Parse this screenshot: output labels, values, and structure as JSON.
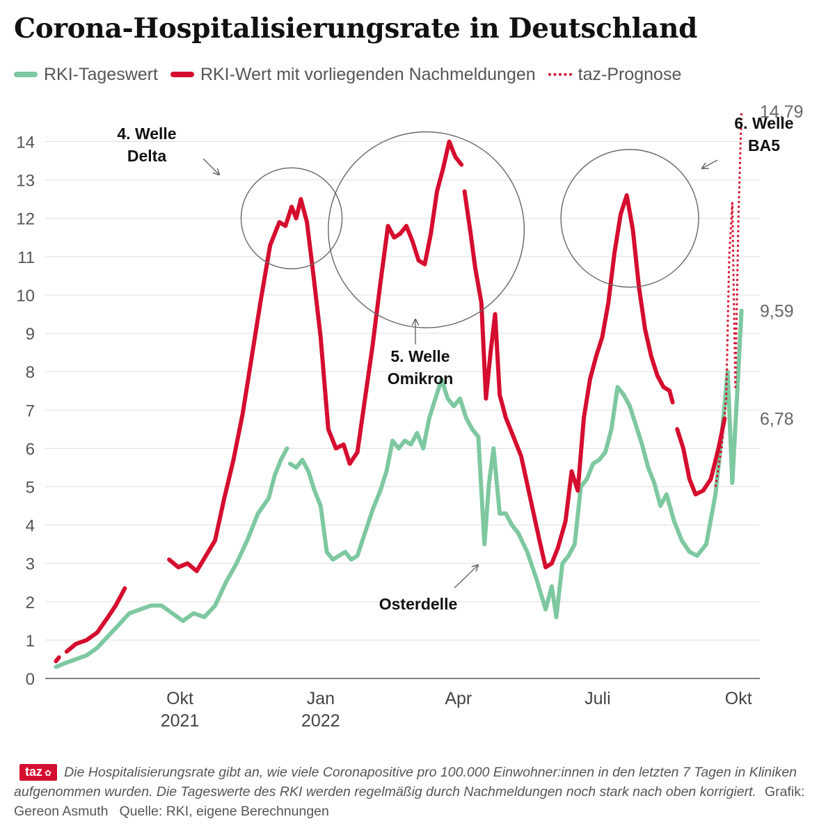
{
  "header": {
    "title": "Corona-Hospitalisierungsrate in Deutschland"
  },
  "legend": {
    "items": [
      {
        "label": "RKI-Tageswert",
        "color": "#7ec8a0",
        "style": "solid"
      },
      {
        "label": "RKI-Wert mit vorliegenden Nachmeldungen",
        "color": "#d50d2e",
        "style": "solid"
      },
      {
        "label": "taz-Prognose",
        "color": "#d50d2e",
        "style": "dotted"
      }
    ]
  },
  "footer": {
    "logo_text": "taz",
    "logo_icon": "paw-icon",
    "description": "Die Hospitalisierungsrate gibt an, wie viele Coronapositive pro 100.000 Einwohner:innen in den letzten 7 Tagen in Kliniken aufgenommen wurden. Die Tageswerte des RKI werden regelmäßig durch Nachmeldungen noch stark nach oben korrigiert.",
    "credit": "Grafik: Gereon Asmuth",
    "source": "Quelle: RKI, eigene Berechnungen"
  },
  "chart_data": {
    "type": "line",
    "x_unit": "date",
    "xlim": [
      "2021-07-05",
      "2022-10-15"
    ],
    "ylim": [
      0,
      14
    ],
    "y_ticks": [
      0,
      1,
      2,
      3,
      4,
      5,
      6,
      7,
      8,
      9,
      10,
      11,
      12,
      13,
      14
    ],
    "y_tick_labels": [
      "0",
      "1",
      "2",
      "3",
      "4",
      "5",
      "6",
      "7",
      "8",
      "9",
      "10",
      "11",
      "12",
      "13",
      "14"
    ],
    "x_ticks": [
      {
        "date": "2021-10-01",
        "label": "Okt",
        "sublabel": "2021"
      },
      {
        "date": "2022-01-01",
        "label": "Jan",
        "sublabel": "2022"
      },
      {
        "date": "2022-04-01",
        "label": "Apr",
        "sublabel": ""
      },
      {
        "date": "2022-07-01",
        "label": "Juli",
        "sublabel": ""
      },
      {
        "date": "2022-10-01",
        "label": "Okt",
        "sublabel": ""
      }
    ],
    "grid": "horizontal",
    "colors": {
      "green": "#7ec8a0",
      "red": "#d50d2e",
      "grid": "#dddddd",
      "axis": "#555555",
      "annotation": "#666666"
    },
    "series": [
      {
        "name": "RKI-Tageswert",
        "color": "#7ec8a0",
        "segments": [
          [
            [
              "2021-07-12",
              0.3
            ],
            [
              "2021-07-18",
              0.4
            ],
            [
              "2021-07-25",
              0.5
            ],
            [
              "2021-08-01",
              0.6
            ],
            [
              "2021-08-08",
              0.8
            ],
            [
              "2021-08-15",
              1.1
            ],
            [
              "2021-08-22",
              1.4
            ],
            [
              "2021-08-29",
              1.7
            ],
            [
              "2021-09-05",
              1.8
            ],
            [
              "2021-09-12",
              1.9
            ],
            [
              "2021-09-19",
              1.9
            ],
            [
              "2021-09-26",
              1.7
            ],
            [
              "2021-10-03",
              1.5
            ],
            [
              "2021-10-10",
              1.7
            ],
            [
              "2021-10-17",
              1.6
            ],
            [
              "2021-10-24",
              1.9
            ],
            [
              "2021-10-31",
              2.5
            ],
            [
              "2021-11-07",
              3.0
            ],
            [
              "2021-11-14",
              3.6
            ],
            [
              "2021-11-21",
              4.3
            ],
            [
              "2021-11-28",
              4.7
            ],
            [
              "2021-12-02",
              5.3
            ],
            [
              "2021-12-06",
              5.7
            ],
            [
              "2021-12-10",
              6.0
            ]
          ],
          [
            [
              "2021-12-12",
              5.6
            ],
            [
              "2021-12-16",
              5.5
            ],
            [
              "2021-12-20",
              5.7
            ],
            [
              "2021-12-24",
              5.4
            ],
            [
              "2021-12-28",
              4.9
            ],
            [
              "2022-01-01",
              4.5
            ],
            [
              "2022-01-05",
              3.3
            ],
            [
              "2022-01-09",
              3.1
            ],
            [
              "2022-01-13",
              3.2
            ],
            [
              "2022-01-17",
              3.3
            ],
            [
              "2022-01-21",
              3.1
            ],
            [
              "2022-01-25",
              3.2
            ],
            [
              "2022-01-30",
              3.8
            ],
            [
              "2022-02-04",
              4.4
            ],
            [
              "2022-02-09",
              4.9
            ],
            [
              "2022-02-13",
              5.4
            ],
            [
              "2022-02-17",
              6.2
            ],
            [
              "2022-02-21",
              6.0
            ],
            [
              "2022-02-25",
              6.2
            ],
            [
              "2022-03-01",
              6.1
            ],
            [
              "2022-03-05",
              6.4
            ],
            [
              "2022-03-09",
              6.0
            ],
            [
              "2022-03-13",
              6.8
            ],
            [
              "2022-03-17",
              7.3
            ],
            [
              "2022-03-21",
              7.8
            ],
            [
              "2022-03-25",
              7.3
            ],
            [
              "2022-03-29",
              7.1
            ],
            [
              "2022-04-02",
              7.3
            ],
            [
              "2022-04-06",
              6.8
            ],
            [
              "2022-04-10",
              6.5
            ],
            [
              "2022-04-14",
              6.3
            ],
            [
              "2022-04-18",
              3.5
            ],
            [
              "2022-04-21",
              5.1
            ],
            [
              "2022-04-24",
              6.0
            ],
            [
              "2022-04-28",
              4.3
            ],
            [
              "2022-05-02",
              4.3
            ],
            [
              "2022-05-06",
              4.0
            ],
            [
              "2022-05-10",
              3.8
            ],
            [
              "2022-05-16",
              3.3
            ],
            [
              "2022-05-22",
              2.6
            ],
            [
              "2022-05-28",
              1.8
            ],
            [
              "2022-06-01",
              2.4
            ],
            [
              "2022-06-04",
              1.6
            ],
            [
              "2022-06-08",
              3.0
            ],
            [
              "2022-06-12",
              3.2
            ],
            [
              "2022-06-16",
              3.5
            ],
            [
              "2022-06-20",
              5.0
            ],
            [
              "2022-06-24",
              5.2
            ],
            [
              "2022-06-28",
              5.6
            ],
            [
              "2022-07-02",
              5.7
            ],
            [
              "2022-07-06",
              5.9
            ],
            [
              "2022-07-10",
              6.5
            ],
            [
              "2022-07-14",
              7.6
            ],
            [
              "2022-07-18",
              7.4
            ],
            [
              "2022-07-22",
              7.1
            ],
            [
              "2022-07-26",
              6.6
            ],
            [
              "2022-07-30",
              6.1
            ],
            [
              "2022-08-03",
              5.5
            ],
            [
              "2022-08-07",
              5.1
            ],
            [
              "2022-08-11",
              4.5
            ],
            [
              "2022-08-15",
              4.8
            ],
            [
              "2022-08-20",
              4.1
            ],
            [
              "2022-08-25",
              3.6
            ],
            [
              "2022-08-30",
              3.3
            ],
            [
              "2022-09-04",
              3.2
            ],
            [
              "2022-09-10",
              3.5
            ],
            [
              "2022-09-16",
              4.8
            ],
            [
              "2022-09-20",
              6.3
            ],
            [
              "2022-09-24",
              8.0
            ],
            [
              "2022-09-27",
              5.1
            ],
            [
              "2022-09-30",
              7.3
            ],
            [
              "2022-10-03",
              9.59
            ]
          ]
        ]
      },
      {
        "name": "RKI-Wert mit vorliegenden Nachmeldungen",
        "color": "#d50d2e",
        "segments": [
          [
            [
              "2021-07-12",
              0.45
            ],
            [
              "2021-07-14",
              0.55
            ]
          ],
          [
            [
              "2021-07-19",
              0.7
            ],
            [
              "2021-07-25",
              0.9
            ],
            [
              "2021-08-01",
              1.0
            ],
            [
              "2021-08-08",
              1.2
            ],
            [
              "2021-08-15",
              1.6
            ],
            [
              "2021-08-20",
              1.9
            ],
            [
              "2021-08-26",
              2.35
            ]
          ],
          [
            [
              "2021-09-24",
              3.1
            ],
            [
              "2021-09-30",
              2.9
            ],
            [
              "2021-10-06",
              3.0
            ],
            [
              "2021-10-12",
              2.8
            ],
            [
              "2021-10-18",
              3.2
            ],
            [
              "2021-10-24",
              3.6
            ],
            [
              "2021-10-30",
              4.7
            ],
            [
              "2021-11-05",
              5.7
            ],
            [
              "2021-11-11",
              6.9
            ],
            [
              "2021-11-17",
              8.4
            ],
            [
              "2021-11-23",
              9.9
            ],
            [
              "2021-11-29",
              11.3
            ],
            [
              "2021-12-05",
              11.9
            ],
            [
              "2021-12-09",
              11.8
            ],
            [
              "2021-12-13",
              12.3
            ],
            [
              "2021-12-16",
              12.0
            ],
            [
              "2021-12-19",
              12.5
            ],
            [
              "2021-12-23",
              11.9
            ],
            [
              "2021-12-27",
              10.6
            ],
            [
              "2022-01-01",
              8.9
            ],
            [
              "2022-01-06",
              6.5
            ],
            [
              "2022-01-11",
              6.0
            ],
            [
              "2022-01-16",
              6.1
            ],
            [
              "2022-01-20",
              5.6
            ],
            [
              "2022-01-25",
              5.9
            ],
            [
              "2022-01-30",
              7.3
            ],
            [
              "2022-02-04",
              8.7
            ],
            [
              "2022-02-09",
              10.3
            ],
            [
              "2022-02-14",
              11.8
            ],
            [
              "2022-02-18",
              11.5
            ],
            [
              "2022-02-22",
              11.6
            ],
            [
              "2022-02-26",
              11.8
            ],
            [
              "2022-03-02",
              11.4
            ],
            [
              "2022-03-06",
              10.9
            ],
            [
              "2022-03-10",
              10.8
            ],
            [
              "2022-03-14",
              11.6
            ],
            [
              "2022-03-18",
              12.7
            ],
            [
              "2022-03-22",
              13.3
            ],
            [
              "2022-03-26",
              14.0
            ],
            [
              "2022-03-30",
              13.6
            ],
            [
              "2022-04-03",
              13.4
            ]
          ],
          [
            [
              "2022-04-05",
              12.7
            ],
            [
              "2022-04-09",
              11.6
            ],
            [
              "2022-04-12",
              10.7
            ],
            [
              "2022-04-16",
              9.8
            ],
            [
              "2022-04-19",
              7.3
            ],
            [
              "2022-04-22",
              8.5
            ],
            [
              "2022-04-25",
              9.5
            ],
            [
              "2022-04-28",
              7.4
            ],
            [
              "2022-05-02",
              6.8
            ],
            [
              "2022-05-06",
              6.4
            ],
            [
              "2022-05-12",
              5.8
            ],
            [
              "2022-05-18",
              4.7
            ],
            [
              "2022-05-24",
              3.6
            ],
            [
              "2022-05-28",
              2.9
            ],
            [
              "2022-06-01",
              3.0
            ],
            [
              "2022-06-05",
              3.4
            ],
            [
              "2022-06-10",
              4.1
            ],
            [
              "2022-06-14",
              5.4
            ],
            [
              "2022-06-18",
              4.9
            ],
            [
              "2022-06-22",
              6.8
            ],
            [
              "2022-06-26",
              7.8
            ],
            [
              "2022-06-30",
              8.4
            ],
            [
              "2022-07-04",
              8.9
            ],
            [
              "2022-07-08",
              9.8
            ],
            [
              "2022-07-12",
              11.1
            ],
            [
              "2022-07-16",
              12.1
            ],
            [
              "2022-07-20",
              12.6
            ],
            [
              "2022-07-24",
              11.7
            ],
            [
              "2022-07-28",
              10.2
            ],
            [
              "2022-08-01",
              9.1
            ],
            [
              "2022-08-05",
              8.4
            ],
            [
              "2022-08-09",
              7.9
            ],
            [
              "2022-08-13",
              7.6
            ],
            [
              "2022-08-17",
              7.5
            ],
            [
              "2022-08-19",
              7.2
            ]
          ],
          [
            [
              "2022-08-22",
              6.5
            ],
            [
              "2022-08-26",
              6.0
            ],
            [
              "2022-08-30",
              5.2
            ],
            [
              "2022-09-03",
              4.8
            ],
            [
              "2022-09-08",
              4.9
            ],
            [
              "2022-09-13",
              5.2
            ],
            [
              "2022-09-18",
              6.0
            ],
            [
              "2022-09-22",
              6.78
            ]
          ]
        ]
      },
      {
        "name": "taz-Prognose",
        "color": "#d50d2e",
        "style": "dotted",
        "segments": [
          [
            [
              "2022-09-16",
              5.0
            ],
            [
              "2022-09-20",
              6.0
            ],
            [
              "2022-09-23",
              7.3
            ],
            [
              "2022-09-25",
              11.0
            ],
            [
              "2022-09-27",
              12.4
            ],
            [
              "2022-09-29",
              7.6
            ],
            [
              "2022-10-01",
              12.0
            ],
            [
              "2022-10-03",
              14.79
            ]
          ]
        ]
      }
    ],
    "end_labels": [
      {
        "text": "14,79",
        "date": "2022-10-03",
        "value": 14.79
      },
      {
        "text": "9,59",
        "date": "2022-10-03",
        "value": 9.59
      },
      {
        "text": "6,78",
        "date": "2022-10-03",
        "value": 6.78
      }
    ],
    "annotations": [
      {
        "lines": [
          "4. Welle",
          "Delta"
        ],
        "circle_center": [
          "2021-12-13",
          12.0
        ],
        "circle_radius_days": 33
      },
      {
        "lines": [
          "5. Welle",
          "Omikron"
        ],
        "circle_center": [
          "2022-03-11",
          11.7
        ],
        "circle_radius_days": 64
      },
      {
        "lines": [
          "Osterdelle"
        ],
        "circle_center": null
      },
      {
        "lines": [
          "6. Welle",
          "BA5"
        ],
        "circle_center": null
      },
      {
        "lines": [],
        "circle_center": [
          "2022-07-22",
          12.0
        ],
        "circle_radius_days": 45
      }
    ]
  }
}
